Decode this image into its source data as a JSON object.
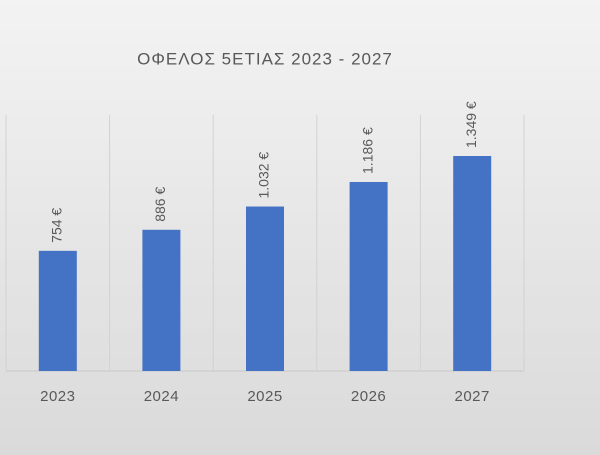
{
  "chart_data": {
    "type": "bar",
    "title": "ΟΦΕΛΟΣ 5ΕΤΙΑΣ 2023 - 2027",
    "categories": [
      "2023",
      "2024",
      "2025",
      "2026",
      "2027"
    ],
    "values": [
      754,
      886,
      1032,
      1186,
      1349
    ],
    "value_labels": [
      "754 €",
      "886 €",
      "1.032 €",
      "1.186 €",
      "1.349 €"
    ],
    "color": "#4472c4",
    "grid": true
  }
}
